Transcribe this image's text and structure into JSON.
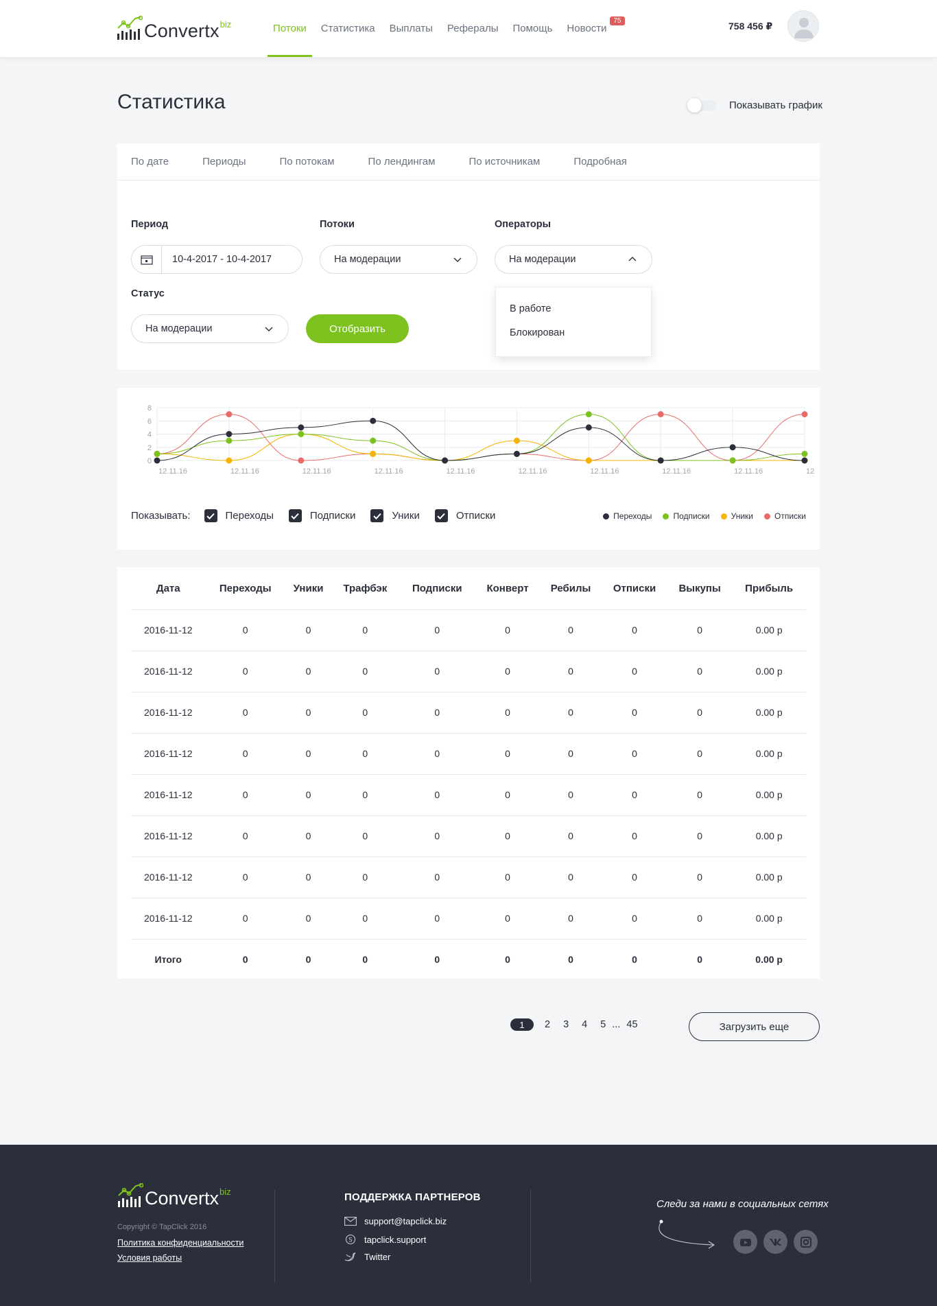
{
  "brand": {
    "name": "Convertx",
    "suffix": "biz"
  },
  "nav": [
    {
      "label": "Потоки",
      "active": true
    },
    {
      "label": "Статистика"
    },
    {
      "label": "Выплаты"
    },
    {
      "label": "Рефералы"
    },
    {
      "label": "Помощь"
    },
    {
      "label": "Новости",
      "badge": "75"
    }
  ],
  "balance": "758 456 ₽",
  "page_title": "Статистика",
  "chart_toggle_label": "Показывать график",
  "tabs": [
    "По дате",
    "Периоды",
    "По потокам",
    "По лендингам",
    "По источникам",
    "Подробная"
  ],
  "filters": {
    "period": {
      "label": "Период",
      "value": "10-4-2017 - 10-4-2017"
    },
    "streams": {
      "label": "Потоки",
      "value": "На модерации"
    },
    "operators": {
      "label": "Операторы",
      "value": "На модерации",
      "options": [
        "В работе",
        "Блокирован"
      ]
    },
    "status": {
      "label": "Статус",
      "value": "На модерации"
    },
    "submit_label": "Отобразить"
  },
  "chart_controls": {
    "show_label": "Показывать:",
    "checkboxes": [
      "Переходы",
      "Подписки",
      "Уники",
      "Отписки"
    ]
  },
  "colors": {
    "accent": "#7dc21e",
    "dark": "#2b2e3b",
    "yellow": "#f5b400",
    "red": "#e86b6b"
  },
  "chart_data": {
    "type": "line",
    "x": [
      "12.11.16",
      "12.11.16",
      "12.11.16",
      "12.11.16",
      "12.11.16",
      "12.11.16",
      "12.11.16",
      "12.11.16",
      "12.11.16",
      "12"
    ],
    "ylim": [
      0,
      8
    ],
    "yticks": [
      0,
      2,
      4,
      6,
      8
    ],
    "grid": true,
    "legend_position": "bottom-right",
    "series": [
      {
        "name": "Переходы",
        "color": "#2b2e3b",
        "values": [
          0,
          4,
          5,
          6,
          0,
          1,
          5,
          0,
          2,
          0
        ]
      },
      {
        "name": "Подписки",
        "color": "#7dc21e",
        "values": [
          1,
          3,
          4,
          3,
          0,
          1,
          7,
          0,
          0,
          1
        ]
      },
      {
        "name": "Уники",
        "color": "#f5b400",
        "values": [
          1,
          0,
          4,
          1,
          0,
          3,
          0,
          0,
          0,
          0
        ]
      },
      {
        "name": "Отписки",
        "color": "#e86b6b",
        "values": [
          1,
          7,
          0,
          1,
          0,
          1,
          0,
          7,
          0,
          7
        ]
      }
    ]
  },
  "table": {
    "headers": [
      "Дата",
      "Переходы",
      "Уники",
      "Трафбэк",
      "Подписки",
      "Конверт",
      "Ребилы",
      "Отписки",
      "Выкупы",
      "Прибыль"
    ],
    "rows": [
      [
        "2016-11-12",
        "0",
        "0",
        "0",
        "0",
        "0",
        "0",
        "0",
        "0",
        "0.00 р"
      ],
      [
        "2016-11-12",
        "0",
        "0",
        "0",
        "0",
        "0",
        "0",
        "0",
        "0",
        "0.00 р"
      ],
      [
        "2016-11-12",
        "0",
        "0",
        "0",
        "0",
        "0",
        "0",
        "0",
        "0",
        "0.00 р"
      ],
      [
        "2016-11-12",
        "0",
        "0",
        "0",
        "0",
        "0",
        "0",
        "0",
        "0",
        "0.00 р"
      ],
      [
        "2016-11-12",
        "0",
        "0",
        "0",
        "0",
        "0",
        "0",
        "0",
        "0",
        "0.00 р"
      ],
      [
        "2016-11-12",
        "0",
        "0",
        "0",
        "0",
        "0",
        "0",
        "0",
        "0",
        "0.00 р"
      ],
      [
        "2016-11-12",
        "0",
        "0",
        "0",
        "0",
        "0",
        "0",
        "0",
        "0",
        "0.00 р"
      ],
      [
        "2016-11-12",
        "0",
        "0",
        "0",
        "0",
        "0",
        "0",
        "0",
        "0",
        "0.00 р"
      ]
    ],
    "total": [
      "Итого",
      "0",
      "0",
      "0",
      "0",
      "0",
      "0",
      "0",
      "0",
      "0.00 р"
    ]
  },
  "pagination": {
    "pages": [
      "1",
      "2",
      "3",
      "4",
      "5"
    ],
    "ellipsis": "...",
    "last": "45",
    "current": "1",
    "load_more": "Загрузить еще"
  },
  "footer": {
    "copyright": "Copyright © TapClick 2016",
    "links": [
      "Политика конфиденциальности",
      "Условия работы"
    ],
    "support_title": "ПОДДЕРЖКА ПАРТНЕРОВ",
    "contacts": [
      {
        "icon": "mail-icon",
        "text": "support@tapclick.biz"
      },
      {
        "icon": "skype-icon",
        "text": "tapclick.support"
      },
      {
        "icon": "twitter-icon",
        "text": "Twitter"
      }
    ],
    "social_title": "Следи за нами в социальных сетях",
    "social": [
      "youtube-icon",
      "vk-icon",
      "instagram-icon"
    ]
  }
}
